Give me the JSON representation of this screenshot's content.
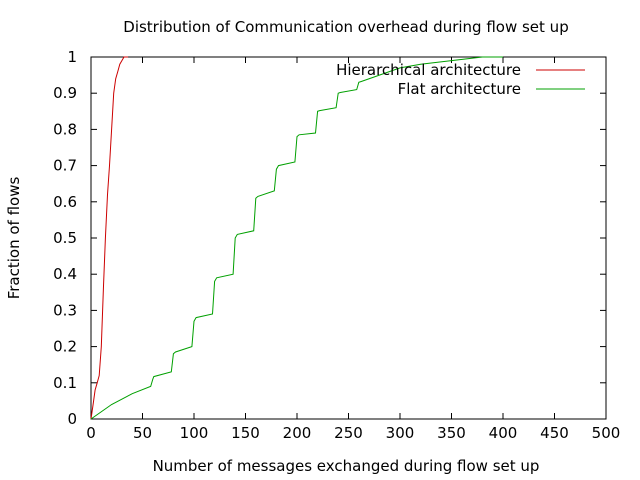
{
  "chart_data": {
    "type": "line",
    "title": "Distribution of Communication overhead during flow set up",
    "xlabel": "Number of messages exchanged during flow set up",
    "ylabel": "Fraction of flows",
    "xlim": [
      0,
      500
    ],
    "ylim": [
      0,
      1
    ],
    "x_ticks": [
      0,
      50,
      100,
      150,
      200,
      250,
      300,
      350,
      400,
      450,
      500
    ],
    "y_ticks": [
      0,
      0.1,
      0.2,
      0.3,
      0.4,
      0.5,
      0.6,
      0.7,
      0.8,
      0.9,
      1
    ],
    "x_tick_labels": [
      "0",
      "50",
      "100",
      "150",
      "200",
      "250",
      "300",
      "350",
      "400",
      "450",
      "500"
    ],
    "y_tick_labels": [
      "0",
      "0.1",
      "0.2",
      "0.3",
      "0.4",
      "0.5",
      "0.6",
      "0.7",
      "0.8",
      "0.9",
      "1"
    ],
    "grid": false,
    "legend_position": "top-right",
    "series": [
      {
        "name": "Hierarchical architecture",
        "color": "#cc0000",
        "x": [
          0,
          2,
          4,
          6,
          8,
          10,
          12,
          14,
          16,
          18,
          20,
          22,
          24,
          26,
          28,
          30,
          32,
          34,
          36
        ],
        "y": [
          0,
          0.04,
          0.08,
          0.1,
          0.12,
          0.2,
          0.36,
          0.5,
          0.62,
          0.7,
          0.8,
          0.9,
          0.94,
          0.96,
          0.98,
          0.99,
          1.0,
          1.0,
          1.0
        ]
      },
      {
        "name": "Flat architecture",
        "color": "#00a000",
        "x": [
          0,
          20,
          40,
          58,
          60,
          61,
          78,
          80,
          82,
          98,
          100,
          102,
          118,
          120,
          122,
          138,
          140,
          142,
          158,
          160,
          162,
          178,
          180,
          182,
          198,
          200,
          202,
          218,
          220,
          222,
          238,
          240,
          242,
          258,
          260,
          262,
          280,
          300,
          320,
          350,
          380,
          400
        ],
        "y": [
          0,
          0.04,
          0.07,
          0.09,
          0.11,
          0.117,
          0.13,
          0.18,
          0.185,
          0.2,
          0.27,
          0.28,
          0.29,
          0.38,
          0.39,
          0.4,
          0.5,
          0.51,
          0.52,
          0.61,
          0.615,
          0.63,
          0.69,
          0.7,
          0.71,
          0.78,
          0.785,
          0.79,
          0.85,
          0.852,
          0.86,
          0.9,
          0.902,
          0.91,
          0.93,
          0.932,
          0.95,
          0.97,
          0.98,
          0.99,
          1.0,
          1.0
        ]
      }
    ]
  }
}
